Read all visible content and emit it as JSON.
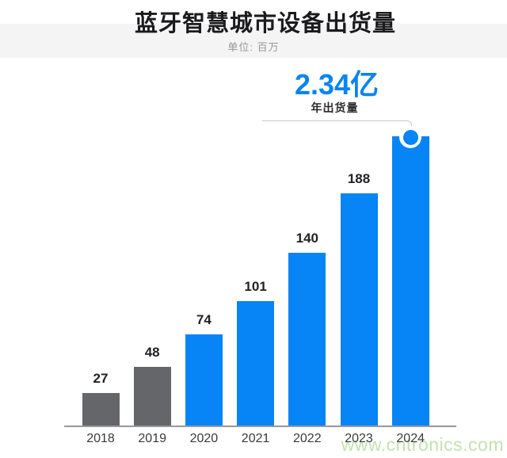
{
  "page": {
    "watermark": "www.cntronics.com"
  },
  "chart_data": {
    "type": "bar",
    "title": "蓝牙智慧城市设备出货量",
    "subtitle": "单位: 百万",
    "unit": "百万",
    "categories": [
      "2018",
      "2019",
      "2020",
      "2021",
      "2022",
      "2023",
      "2024"
    ],
    "values": [
      27,
      48,
      74,
      101,
      140,
      188,
      234
    ],
    "bar_labels": [
      "27",
      "48",
      "74",
      "101",
      "140",
      "188",
      ""
    ],
    "bar_styles": [
      "past",
      "past",
      "current",
      "current",
      "current",
      "current",
      "current"
    ],
    "highlight": {
      "category": "2024",
      "value": 234,
      "value_text": "2.34亿",
      "label": "年出货量"
    },
    "colors": {
      "past_bar": "#65666a",
      "current_bar": "#0784f5",
      "accent_text": "#0784f5"
    },
    "ylim": [
      0,
      240
    ],
    "legend": false,
    "grid": false
  }
}
